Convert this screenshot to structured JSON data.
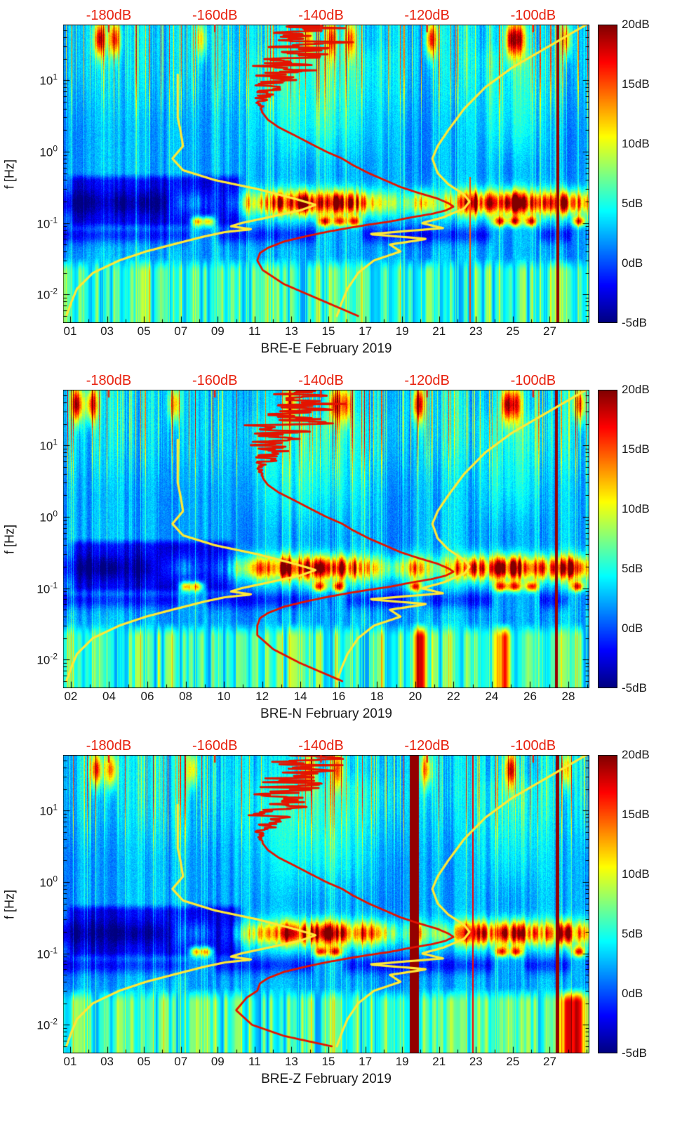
{
  "labels": {
    "ylabel": "f [Hz]"
  },
  "colors": {
    "annotation_red": "#e8220f",
    "curve_red": "#e41300",
    "curve_yellow": "#ffe837",
    "axis_text": "#1a1a1a"
  },
  "chart_data": {
    "type": "heatmap",
    "top_axis": {
      "range": [
        -188.6,
        -89.4
      ],
      "ticks": [
        {
          "label": "-180dB",
          "value": -180
        },
        {
          "label": "-160dB",
          "value": -160
        },
        {
          "label": "-140dB",
          "value": -140
        },
        {
          "label": "-120dB",
          "value": -120
        },
        {
          "label": "-100dB",
          "value": -100
        }
      ]
    },
    "y_axis": {
      "label": "f [Hz]",
      "scale": "log",
      "log10_range": [
        -2.4,
        1.78
      ],
      "ticks": [
        {
          "label": "10^1",
          "exp": 1
        },
        {
          "label": "10^0",
          "exp": 0
        },
        {
          "label": "10^-1",
          "exp": -1
        },
        {
          "label": "10^-2",
          "exp": -2
        }
      ]
    },
    "colorbar": {
      "range": [
        -5,
        20
      ],
      "ticks": [
        {
          "label": "20dB",
          "value": 20
        },
        {
          "label": "15dB",
          "value": 15
        },
        {
          "label": "10dB",
          "value": 10
        },
        {
          "label": "5dB",
          "value": 5
        },
        {
          "label": "0dB",
          "value": 0
        },
        {
          "label": "-5dB",
          "value": -5
        }
      ]
    },
    "overlays": {
      "red_psd_main": [
        [
          60,
          -141
        ],
        [
          45,
          -143
        ],
        [
          35,
          -141
        ],
        [
          28,
          -145
        ],
        [
          22,
          -144
        ],
        [
          18,
          -147
        ],
        [
          14,
          -146
        ],
        [
          11,
          -148
        ],
        [
          9,
          -149
        ],
        [
          7,
          -150
        ],
        [
          5.5,
          -151
        ],
        [
          4.5,
          -151.5
        ],
        [
          3.5,
          -151
        ],
        [
          2.8,
          -150
        ],
        [
          2.2,
          -148
        ],
        [
          1.7,
          -145
        ],
        [
          1.3,
          -142
        ],
        [
          1.0,
          -139
        ],
        [
          0.8,
          -136
        ],
        [
          0.65,
          -134
        ],
        [
          0.5,
          -131
        ],
        [
          0.4,
          -128
        ],
        [
          0.32,
          -125
        ],
        [
          0.27,
          -122
        ],
        [
          0.22,
          -118
        ],
        [
          0.19,
          -116
        ],
        [
          0.17,
          -115
        ],
        [
          0.15,
          -116.5
        ],
        [
          0.135,
          -119
        ],
        [
          0.12,
          -123
        ],
        [
          0.105,
          -127
        ],
        [
          0.095,
          -131
        ],
        [
          0.085,
          -135
        ],
        [
          0.075,
          -139
        ],
        [
          0.065,
          -143
        ],
        [
          0.055,
          -147
        ],
        [
          0.045,
          -150
        ],
        [
          0.038,
          -151.5
        ],
        [
          0.03,
          -152
        ]
      ],
      "yellow_low_noise_model": [
        [
          12,
          -167
        ],
        [
          8,
          -167
        ],
        [
          5,
          -167
        ],
        [
          3,
          -167
        ],
        [
          2,
          -166.5
        ],
        [
          1.2,
          -166
        ],
        [
          0.8,
          -168
        ],
        [
          0.55,
          -166
        ],
        [
          0.4,
          -160
        ],
        [
          0.3,
          -152
        ],
        [
          0.22,
          -145
        ],
        [
          0.18,
          -141
        ],
        [
          0.15,
          -144
        ],
        [
          0.12,
          -150
        ],
        [
          0.1,
          -155
        ],
        [
          0.09,
          -157
        ],
        [
          0.082,
          -153
        ],
        [
          0.075,
          -158
        ],
        [
          0.065,
          -162
        ],
        [
          0.05,
          -168
        ],
        [
          0.04,
          -173
        ],
        [
          0.03,
          -178
        ],
        [
          0.02,
          -183
        ],
        [
          0.012,
          -186
        ],
        [
          0.008,
          -187
        ],
        [
          0.005,
          -188
        ]
      ],
      "yellow_high_noise_model": [
        [
          60,
          -90
        ],
        [
          30,
          -97
        ],
        [
          15,
          -104
        ],
        [
          8,
          -109
        ],
        [
          4,
          -113
        ],
        [
          2,
          -116
        ],
        [
          1.2,
          -118
        ],
        [
          0.8,
          -119
        ],
        [
          0.5,
          -118
        ],
        [
          0.35,
          -116
        ],
        [
          0.25,
          -113
        ],
        [
          0.2,
          -112
        ],
        [
          0.16,
          -113
        ],
        [
          0.12,
          -117
        ],
        [
          0.1,
          -121
        ],
        [
          0.085,
          -117
        ],
        [
          0.07,
          -131
        ],
        [
          0.06,
          -120
        ],
        [
          0.05,
          -127
        ],
        [
          0.04,
          -125
        ],
        [
          0.03,
          -130
        ],
        [
          0.02,
          -133
        ],
        [
          0.012,
          -135
        ],
        [
          0.008,
          -136
        ],
        [
          0.005,
          -137
        ]
      ]
    },
    "panels": [
      {
        "title": "BRE-E February 2019",
        "seed": 1,
        "x_axis": {
          "day_range": [
            0.62,
            29.15
          ],
          "tick_labels": [
            "01",
            "03",
            "05",
            "07",
            "09",
            "11",
            "13",
            "15",
            "17",
            "19",
            "21",
            "23",
            "25",
            "27"
          ],
          "tick_days": [
            1,
            3,
            5,
            7,
            9,
            11,
            13,
            15,
            17,
            19,
            21,
            23,
            25,
            27
          ]
        },
        "red_tail": [
          [
            0.022,
            -151
          ],
          [
            0.014,
            -147
          ],
          [
            0.009,
            -141
          ],
          [
            0.005,
            -133
          ]
        ],
        "features": {
          "micro_amp_by_day": [
            -3,
            -3,
            -2,
            -3,
            -3,
            -2,
            2,
            4,
            0,
            3,
            9,
            13,
            17,
            15,
            18,
            16,
            12,
            8,
            4,
            10,
            5,
            9,
            17,
            13,
            18,
            15,
            12,
            17,
            8
          ],
          "band2_days": [
            7.9,
            8.5,
            14.8,
            15.6,
            16.4,
            24.3,
            25.1,
            26.0,
            28.6
          ],
          "top_blob_days": [
            {
              "day": 2.6,
              "amp": 15
            },
            {
              "day": 3.4,
              "amp": 13
            },
            {
              "day": 8.1,
              "amp": 8
            },
            {
              "day": 13.9,
              "amp": 11
            },
            {
              "day": 15.2,
              "amp": 12
            },
            {
              "day": 16.2,
              "amp": 11
            },
            {
              "day": 20.6,
              "amp": 14
            },
            {
              "day": 24.9,
              "amp": 16
            },
            {
              "day": 25.4,
              "amp": 14
            },
            {
              "day": 27.9,
              "amp": 10
            }
          ],
          "bottom_hot_days": [],
          "washes": [
            {
              "day": 14.5,
              "sigma": 3.2,
              "amp": 2.6
            },
            {
              "day": 25.0,
              "sigma": 1.8,
              "amp": 2.2
            }
          ],
          "dark_patch": {
            "day_start": 0.6,
            "day_end": 10.6,
            "amp": -4.5
          },
          "stripes": [
            {
              "day": 27.45,
              "width": 0.18,
              "value": 19.5
            },
            {
              "day": 22.7,
              "width": 0.07,
              "value": 15,
              "lf_high": -0.35
            }
          ]
        }
      },
      {
        "title": "BRE-N February 2019",
        "seed": 2,
        "x_axis": {
          "day_range": [
            1.6,
            29.1
          ],
          "tick_labels": [
            "02",
            "04",
            "06",
            "08",
            "10",
            "12",
            "14",
            "16",
            "18",
            "20",
            "22",
            "24",
            "26",
            "28"
          ],
          "tick_days": [
            2,
            4,
            6,
            8,
            10,
            12,
            14,
            16,
            18,
            20,
            22,
            24,
            26,
            28
          ]
        },
        "red_tail": [
          [
            0.022,
            -152
          ],
          [
            0.014,
            -149
          ],
          [
            0.009,
            -144
          ],
          [
            0.005,
            -136
          ]
        ],
        "features": {
          "micro_amp_by_day": [
            -3,
            -2,
            -3,
            -3,
            -2,
            -2,
            2,
            4,
            1,
            3,
            8,
            12,
            16,
            15,
            17,
            16,
            12,
            8,
            5,
            11,
            5,
            9,
            16,
            13,
            18,
            15,
            12,
            17,
            9
          ],
          "band2_days": [
            8.0,
            8.6,
            15.0,
            16.0,
            20.0,
            24.5,
            25.2,
            26.1,
            28.5
          ],
          "top_blob_days": [
            {
              "day": 2.3,
              "amp": 16
            },
            {
              "day": 3.1,
              "amp": 14
            },
            {
              "day": 7.4,
              "amp": 10
            },
            {
              "day": 13.5,
              "amp": 12
            },
            {
              "day": 15.8,
              "amp": 14
            },
            {
              "day": 16.4,
              "amp": 12
            },
            {
              "day": 20.2,
              "amp": 15
            },
            {
              "day": 24.8,
              "amp": 16
            },
            {
              "day": 25.3,
              "amp": 13
            },
            {
              "day": 28.6,
              "amp": 12
            }
          ],
          "bottom_hot_days": [
            20.3,
            24.6
          ],
          "washes": [
            {
              "day": 14.5,
              "sigma": 3.0,
              "amp": 2.4
            },
            {
              "day": 25.0,
              "sigma": 1.8,
              "amp": 2.2
            }
          ],
          "dark_patch": {
            "day_start": 1.6,
            "day_end": 10.8,
            "amp": -4.5
          },
          "stripes": [
            {
              "day": 27.4,
              "width": 0.16,
              "value": 19.5
            }
          ]
        }
      },
      {
        "title": "BRE-Z February 2019",
        "seed": 3,
        "x_axis": {
          "day_range": [
            0.62,
            29.15
          ],
          "tick_labels": [
            "01",
            "03",
            "05",
            "07",
            "09",
            "11",
            "13",
            "15",
            "17",
            "19",
            "21",
            "23",
            "25",
            "27"
          ],
          "tick_days": [
            1,
            3,
            5,
            7,
            9,
            11,
            13,
            15,
            17,
            19,
            21,
            23,
            25,
            27
          ]
        },
        "red_tail": [
          [
            0.024,
            -154
          ],
          [
            0.016,
            -156
          ],
          [
            0.01,
            -153
          ],
          [
            0.007,
            -147
          ],
          [
            0.005,
            -138
          ]
        ],
        "features": {
          "micro_amp_by_day": [
            -3,
            -3,
            -2,
            -3,
            -2,
            -2,
            2,
            4,
            0,
            3,
            9,
            12,
            16,
            14,
            17,
            15,
            12,
            8,
            4,
            10,
            5,
            8,
            16,
            12,
            17,
            14,
            11,
            16,
            8
          ],
          "band2_days": [
            7.8,
            8.4,
            14.6,
            15.4,
            24.4,
            25.2,
            28.6
          ],
          "top_blob_days": [
            {
              "day": 2.4,
              "amp": 14
            },
            {
              "day": 3.2,
              "amp": 12
            },
            {
              "day": 7.6,
              "amp": 8
            },
            {
              "day": 14.0,
              "amp": 11
            },
            {
              "day": 15.5,
              "amp": 12
            },
            {
              "day": 20.3,
              "amp": 10
            },
            {
              "day": 24.9,
              "amp": 15
            },
            {
              "day": 27.9,
              "amp": 9
            }
          ],
          "bottom_hot_days": [
            27.9,
            28.5
          ],
          "washes": [
            {
              "day": 14.5,
              "sigma": 3.2,
              "amp": 2.5
            },
            {
              "day": 25.0,
              "sigma": 1.8,
              "amp": 2.0
            }
          ],
          "dark_patch": {
            "day_start": 0.6,
            "day_end": 10.6,
            "amp": -4.5
          },
          "stripes": [
            {
              "day": 19.65,
              "width": 0.5,
              "value": 19.5
            },
            {
              "day": 22.85,
              "width": 0.1,
              "value": 17
            },
            {
              "day": 27.45,
              "width": 0.2,
              "value": 19.5
            }
          ]
        }
      }
    ]
  }
}
